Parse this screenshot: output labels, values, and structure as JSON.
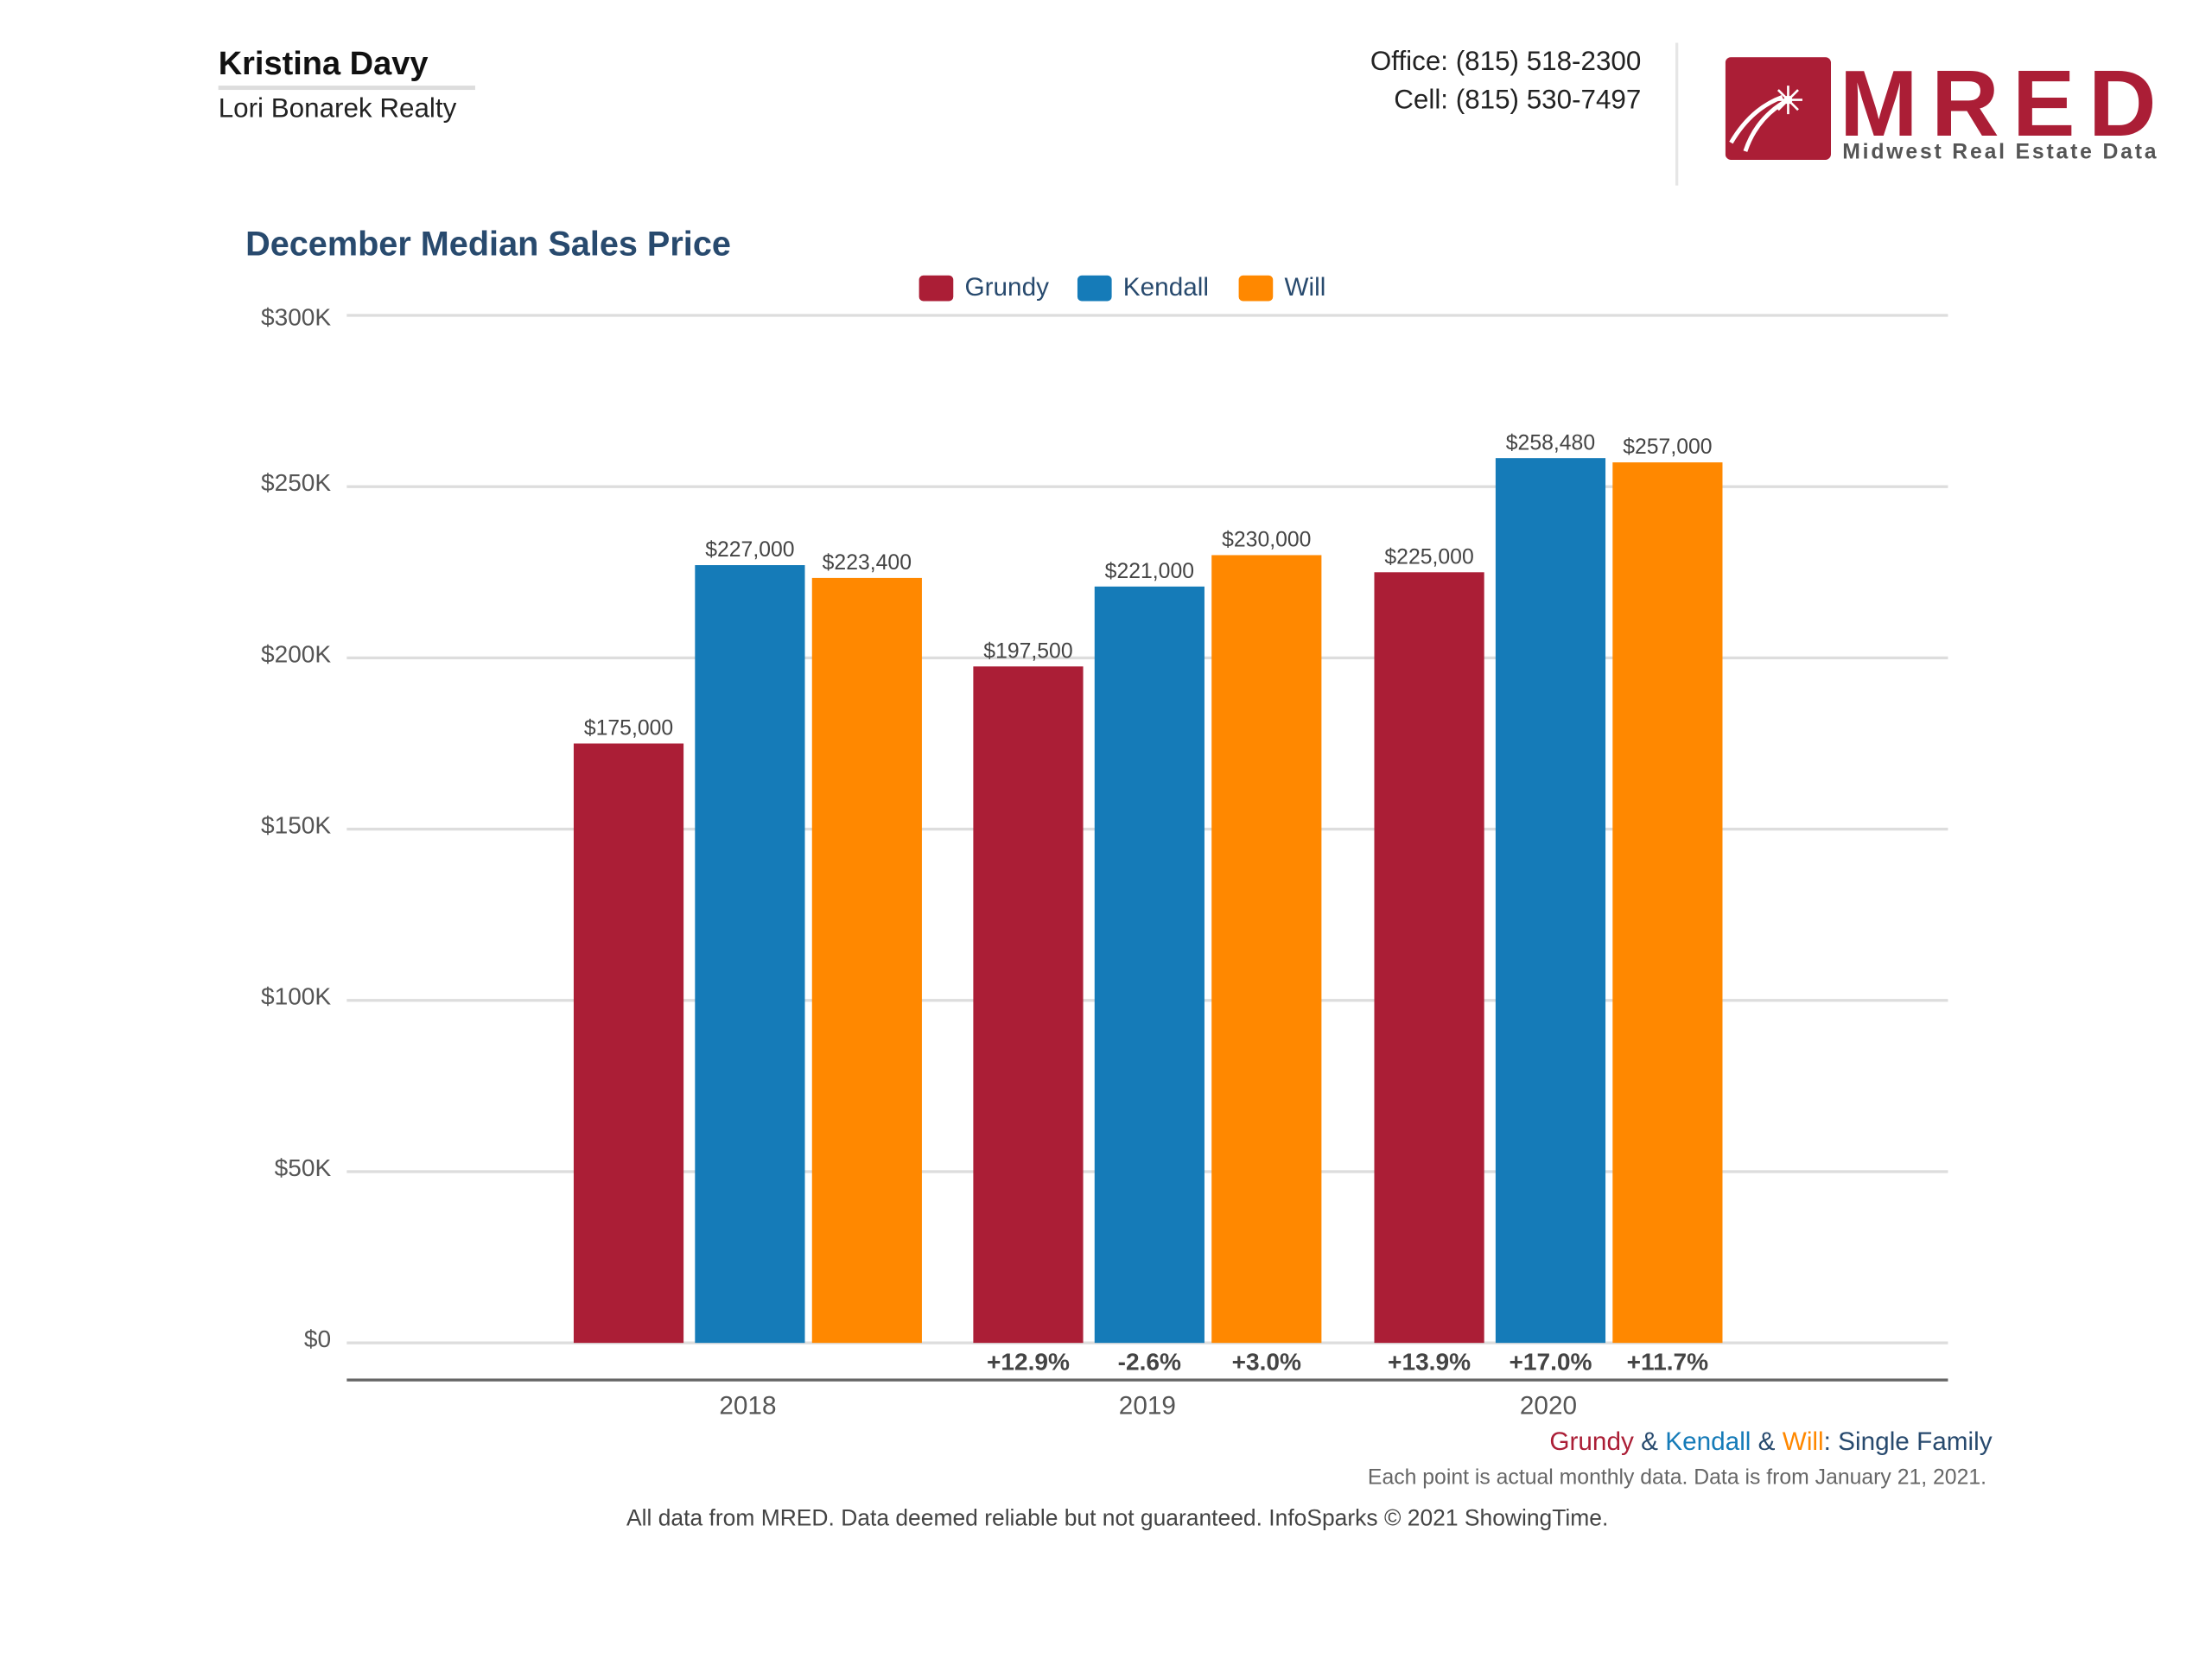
{
  "header": {
    "agent_name": "Kristina Davy",
    "agent_company": "Lori Bonarek Realty",
    "office": "Office: (815) 518-2300",
    "cell": "Cell: (815) 530-7497",
    "logo": {
      "text": "MRED",
      "subtext": "Midwest Real Estate Data",
      "color": "#ab1e36"
    }
  },
  "chart_data": {
    "type": "bar",
    "title": "December Median Sales Price",
    "categories": [
      "2018",
      "2019",
      "2020"
    ],
    "series": [
      {
        "name": "Grundy",
        "color": "#ab1e36",
        "values": [
          175000,
          197500,
          225000
        ],
        "labels": [
          "$175,000",
          "$197,500",
          "$225,000"
        ],
        "changes": [
          "",
          "+12.9%",
          "+13.9%"
        ]
      },
      {
        "name": "Kendall",
        "color": "#157bb8",
        "values": [
          227000,
          221000,
          258480
        ],
        "labels": [
          "$227,000",
          "$221,000",
          "$258,480"
        ],
        "changes": [
          "",
          "-2.6%",
          "+17.0%"
        ]
      },
      {
        "name": "Will",
        "color": "#ff8800",
        "values": [
          223400,
          230000,
          257000
        ],
        "labels": [
          "$223,400",
          "$230,000",
          "$257,000"
        ],
        "changes": [
          "",
          "+3.0%",
          "+11.7%"
        ]
      }
    ],
    "ylim": [
      0,
      300000
    ],
    "yticks": [
      {
        "v": 0,
        "label": "$0"
      },
      {
        "v": 50000,
        "label": "$50K"
      },
      {
        "v": 100000,
        "label": "$100K"
      },
      {
        "v": 150000,
        "label": "$150K"
      },
      {
        "v": 200000,
        "label": "$200K"
      },
      {
        "v": 250000,
        "label": "$250K"
      },
      {
        "v": 300000,
        "label": "$300K"
      }
    ],
    "grid": true,
    "legend": "top-center"
  },
  "notes": {
    "series_note": {
      "grundy": "Grundy",
      "amp1": " & ",
      "kendall": "Kendall",
      "amp2": " & ",
      "will": "Will",
      "suffix": ": Single Family"
    },
    "data_note": "Each point is actual monthly data. Data is from January 21, 2021.",
    "footer": "All data from MRED. Data deemed reliable but not guaranteed. InfoSparks © 2021 ShowingTime."
  }
}
